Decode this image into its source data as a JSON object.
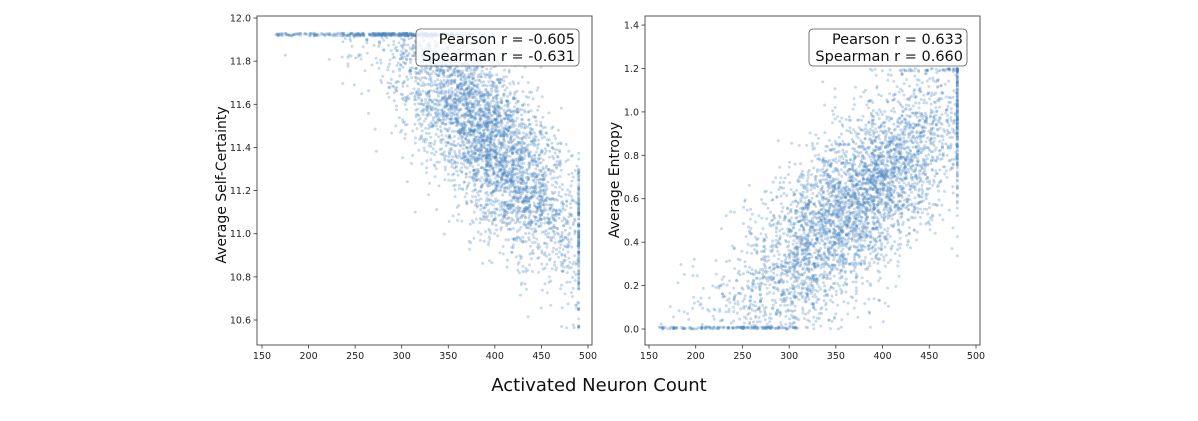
{
  "figure": {
    "xlabel": "Activated Neuron Count",
    "point_color": "#4a86c0",
    "point_opacity": 0.3
  },
  "chart_data": [
    {
      "type": "scatter",
      "title": "",
      "xlabel": "Activated Neuron Count",
      "ylabel": "Average Self-Certainty",
      "xlim": [
        145,
        505
      ],
      "ylim": [
        10.48,
        12.0
      ],
      "xticks": [
        150,
        200,
        250,
        300,
        350,
        400,
        450,
        500
      ],
      "yticks": [
        "10.6",
        "10.8",
        "11.0",
        "11.2",
        "11.4",
        "11.6",
        "11.8",
        "12.0"
      ],
      "annotation": [
        "Pearson r = -0.605",
        "Spearman r = -0.631"
      ],
      "stats": {
        "pearson_r": -0.605,
        "spearman_r": -0.631
      },
      "grid": false,
      "point_cloud": {
        "n": 4200,
        "x_mean": 390,
        "x_sd": 55,
        "x_min": 165,
        "x_max": 490,
        "y_intercept": 13.25,
        "y_slope": -0.0046,
        "y_noise": 0.2,
        "y_min": 10.56,
        "y_max": 11.93
      }
    },
    {
      "type": "scatter",
      "title": "",
      "xlabel": "Activated Neuron Count",
      "ylabel": "Average Entropy",
      "xlim": [
        143,
        505
      ],
      "ylim": [
        -0.07,
        1.44
      ],
      "xticks": [
        150,
        200,
        250,
        300,
        350,
        400,
        450,
        500
      ],
      "yticks": [
        "0.0",
        "0.2",
        "0.4",
        "0.6",
        "0.8",
        "1.0",
        "1.2",
        "1.4"
      ],
      "annotation": [
        "Pearson r = 0.633",
        "Spearman r = 0.660"
      ],
      "stats": {
        "pearson_r": 0.633,
        "spearman_r": 0.66
      },
      "grid": false,
      "point_cloud": {
        "n": 4200,
        "x_mean": 370,
        "x_sd": 65,
        "x_min": 160,
        "x_max": 480,
        "y_intercept": -0.75,
        "y_slope": 0.0036,
        "y_noise": 0.2,
        "y_min": 0.0,
        "y_max": 1.2
      }
    }
  ]
}
